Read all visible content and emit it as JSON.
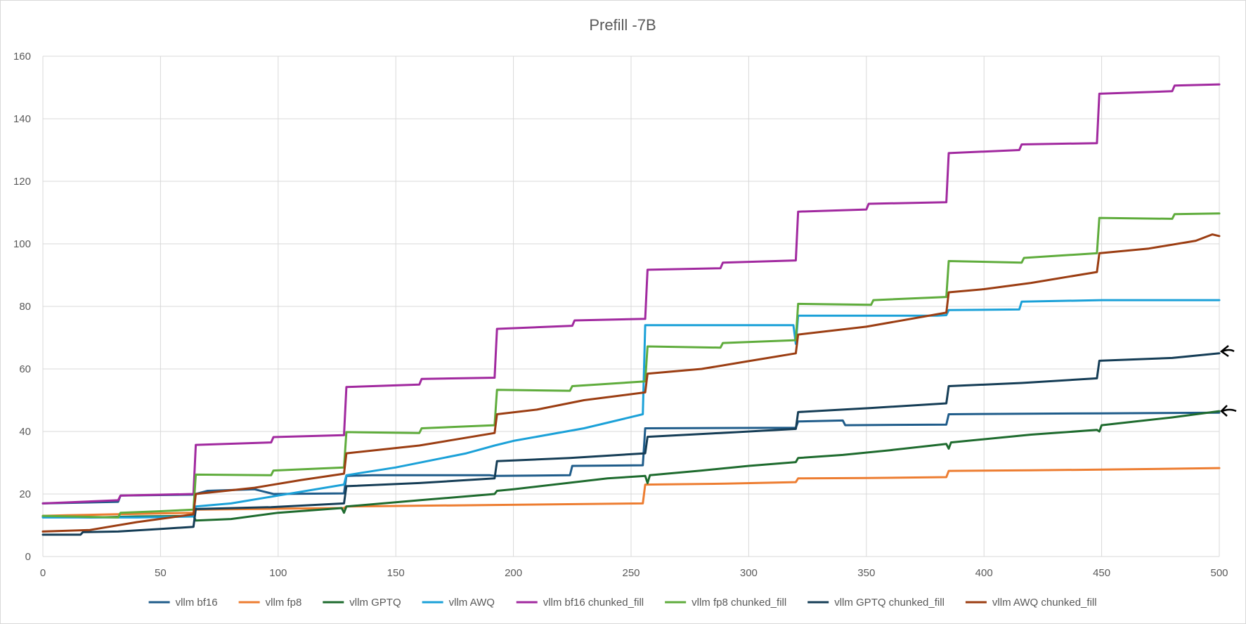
{
  "chart_data": {
    "type": "line",
    "title": "Prefill -7B",
    "xlabel": "",
    "ylabel": "",
    "xlim": [
      0,
      500
    ],
    "ylim": [
      0,
      160
    ],
    "x_ticks": [
      "0",
      "50",
      "100",
      "150",
      "200",
      "250",
      "300",
      "350",
      "400",
      "450",
      "500"
    ],
    "y_ticks": [
      "0",
      "20",
      "40",
      "60",
      "80",
      "100",
      "120",
      "140",
      "160"
    ],
    "grid": "both",
    "legend_position": "bottom",
    "annotations": [
      "arrow pointing to vllm GPTQ chunked_fill at x=500",
      "arrow pointing to vllm GPTQ at x=500"
    ],
    "series": [
      {
        "name": "vllm bf16",
        "color": "#1f5c8a",
        "points": [
          [
            0,
            17
          ],
          [
            32,
            17.5
          ],
          [
            33,
            19.5
          ],
          [
            64,
            19.8
          ],
          [
            65,
            20
          ],
          [
            70,
            21
          ],
          [
            90,
            21.5
          ],
          [
            98,
            20
          ],
          [
            128,
            20.2
          ],
          [
            129,
            25.8
          ],
          [
            140,
            26
          ],
          [
            190,
            26
          ],
          [
            192,
            25.8
          ],
          [
            224,
            26
          ],
          [
            225,
            29
          ],
          [
            255,
            29.2
          ],
          [
            256,
            41
          ],
          [
            320,
            41.2
          ],
          [
            321,
            43.2
          ],
          [
            340,
            43.5
          ],
          [
            341,
            42
          ],
          [
            384,
            42.2
          ],
          [
            385,
            45.5
          ],
          [
            400,
            45.6
          ],
          [
            450,
            45.8
          ],
          [
            500,
            46
          ]
        ]
      },
      {
        "name": "vllm fp8",
        "color": "#ed7d31",
        "points": [
          [
            0,
            13
          ],
          [
            10,
            13.2
          ],
          [
            30,
            13.5
          ],
          [
            64,
            14
          ],
          [
            65,
            15
          ],
          [
            100,
            15.3
          ],
          [
            128,
            15.5
          ],
          [
            129,
            16
          ],
          [
            192,
            16.5
          ],
          [
            255,
            17
          ],
          [
            256,
            23
          ],
          [
            290,
            23.3
          ],
          [
            320,
            23.8
          ],
          [
            321,
            25
          ],
          [
            350,
            25.1
          ],
          [
            384,
            25.4
          ],
          [
            385,
            27.4
          ],
          [
            420,
            27.6
          ],
          [
            450,
            27.8
          ],
          [
            500,
            28.3
          ]
        ]
      },
      {
        "name": "vllm GPTQ",
        "color": "#1e6b2e",
        "points": [
          [
            0,
            12.8
          ],
          [
            20,
            12.5
          ],
          [
            40,
            12.8
          ],
          [
            64,
            13
          ],
          [
            65,
            11.5
          ],
          [
            80,
            12
          ],
          [
            100,
            14
          ],
          [
            127,
            15.5
          ],
          [
            128,
            14
          ],
          [
            129,
            16
          ],
          [
            160,
            18
          ],
          [
            192,
            20
          ],
          [
            193,
            21
          ],
          [
            200,
            21.5
          ],
          [
            240,
            25
          ],
          [
            256,
            25.8
          ],
          [
            257,
            23.5
          ],
          [
            258,
            26
          ],
          [
            280,
            27.5
          ],
          [
            300,
            29
          ],
          [
            320,
            30.2
          ],
          [
            321,
            31.5
          ],
          [
            340,
            32.5
          ],
          [
            360,
            34
          ],
          [
            384,
            36
          ],
          [
            385,
            34.5
          ],
          [
            386,
            36.5
          ],
          [
            420,
            39
          ],
          [
            448,
            40.5
          ],
          [
            449,
            40
          ],
          [
            450,
            42
          ],
          [
            480,
            44.5
          ],
          [
            500,
            46.5
          ]
        ]
      },
      {
        "name": "vllm AWQ",
        "color": "#1ba1d8",
        "points": [
          [
            0,
            12.5
          ],
          [
            40,
            12.5
          ],
          [
            64,
            12.8
          ],
          [
            65,
            16
          ],
          [
            80,
            17
          ],
          [
            100,
            19.5
          ],
          [
            128,
            23
          ],
          [
            129,
            26
          ],
          [
            150,
            28.5
          ],
          [
            180,
            33
          ],
          [
            192,
            35.5
          ],
          [
            200,
            37
          ],
          [
            230,
            41
          ],
          [
            255,
            45.5
          ],
          [
            256,
            74
          ],
          [
            300,
            74
          ],
          [
            319,
            74
          ],
          [
            320,
            68
          ],
          [
            321,
            77
          ],
          [
            380,
            77
          ],
          [
            384,
            77.2
          ],
          [
            385,
            78.8
          ],
          [
            415,
            79
          ],
          [
            416,
            81.5
          ],
          [
            450,
            82
          ],
          [
            500,
            82
          ]
        ]
      },
      {
        "name": "vllm bf16 chunked_fill",
        "color": "#a1299f",
        "points": [
          [
            0,
            17
          ],
          [
            32,
            18
          ],
          [
            33,
            19.5
          ],
          [
            64,
            20
          ],
          [
            65,
            35.7
          ],
          [
            97,
            36.5
          ],
          [
            98,
            38.2
          ],
          [
            128,
            38.8
          ],
          [
            129,
            54.2
          ],
          [
            160,
            55
          ],
          [
            161,
            56.8
          ],
          [
            192,
            57.2
          ],
          [
            193,
            72.8
          ],
          [
            225,
            73.8
          ],
          [
            226,
            75.5
          ],
          [
            256,
            76
          ],
          [
            257,
            91.7
          ],
          [
            288,
            92.2
          ],
          [
            289,
            94
          ],
          [
            320,
            94.7
          ],
          [
            321,
            110.3
          ],
          [
            350,
            111
          ],
          [
            351,
            112.8
          ],
          [
            384,
            113.3
          ],
          [
            385,
            129
          ],
          [
            415,
            130
          ],
          [
            416,
            131.8
          ],
          [
            448,
            132.2
          ],
          [
            449,
            148
          ],
          [
            480,
            148.8
          ],
          [
            481,
            150.6
          ],
          [
            500,
            151
          ]
        ]
      },
      {
        "name": "vllm fp8 chunked_fill",
        "color": "#5fac3c",
        "points": [
          [
            0,
            13
          ],
          [
            32,
            12.5
          ],
          [
            33,
            14
          ],
          [
            50,
            14.5
          ],
          [
            64,
            15
          ],
          [
            65,
            26.2
          ],
          [
            97,
            26
          ],
          [
            98,
            27.5
          ],
          [
            128,
            28.5
          ],
          [
            129,
            39.8
          ],
          [
            160,
            39.5
          ],
          [
            161,
            41
          ],
          [
            192,
            42
          ],
          [
            193,
            53.3
          ],
          [
            224,
            53
          ],
          [
            225,
            54.5
          ],
          [
            256,
            56
          ],
          [
            257,
            67.2
          ],
          [
            288,
            66.8
          ],
          [
            289,
            68.3
          ],
          [
            320,
            69.2
          ],
          [
            321,
            80.8
          ],
          [
            352,
            80.5
          ],
          [
            353,
            82
          ],
          [
            384,
            83
          ],
          [
            385,
            94.5
          ],
          [
            416,
            94
          ],
          [
            417,
            95.5
          ],
          [
            448,
            97
          ],
          [
            449,
            108.3
          ],
          [
            480,
            108
          ],
          [
            481,
            109.5
          ],
          [
            500,
            109.7
          ]
        ]
      },
      {
        "name": "vllm GPTQ chunked_fill",
        "color": "#153d56",
        "points": [
          [
            0,
            7
          ],
          [
            16,
            7
          ],
          [
            17,
            7.8
          ],
          [
            32,
            8
          ],
          [
            50,
            8.8
          ],
          [
            64,
            9.5
          ],
          [
            65,
            15.2
          ],
          [
            97,
            15.8
          ],
          [
            110,
            16.3
          ],
          [
            128,
            17
          ],
          [
            129,
            22.5
          ],
          [
            160,
            23.5
          ],
          [
            192,
            25
          ],
          [
            193,
            30.5
          ],
          [
            224,
            31.5
          ],
          [
            256,
            33
          ],
          [
            257,
            38.3
          ],
          [
            288,
            39.5
          ],
          [
            320,
            40.8
          ],
          [
            321,
            46.2
          ],
          [
            352,
            47.5
          ],
          [
            384,
            49
          ],
          [
            385,
            54.5
          ],
          [
            416,
            55.5
          ],
          [
            448,
            57
          ],
          [
            449,
            62.6
          ],
          [
            480,
            63.5
          ],
          [
            500,
            65
          ]
        ]
      },
      {
        "name": "vllm AWQ chunked_fill",
        "color": "#9b3d12",
        "points": [
          [
            0,
            8
          ],
          [
            20,
            8.5
          ],
          [
            40,
            11
          ],
          [
            64,
            13.5
          ],
          [
            65,
            20
          ],
          [
            90,
            22
          ],
          [
            110,
            24.5
          ],
          [
            128,
            26.5
          ],
          [
            129,
            33
          ],
          [
            160,
            35.5
          ],
          [
            192,
            39.5
          ],
          [
            193,
            45.5
          ],
          [
            210,
            47
          ],
          [
            230,
            50
          ],
          [
            256,
            52.5
          ],
          [
            257,
            58.5
          ],
          [
            280,
            60
          ],
          [
            300,
            62.5
          ],
          [
            320,
            65
          ],
          [
            321,
            71
          ],
          [
            350,
            73.5
          ],
          [
            384,
            78
          ],
          [
            385,
            84.5
          ],
          [
            400,
            85.5
          ],
          [
            420,
            87.5
          ],
          [
            448,
            91
          ],
          [
            449,
            97
          ],
          [
            470,
            98.5
          ],
          [
            490,
            101
          ],
          [
            497,
            103
          ],
          [
            500,
            102.5
          ]
        ]
      }
    ]
  }
}
